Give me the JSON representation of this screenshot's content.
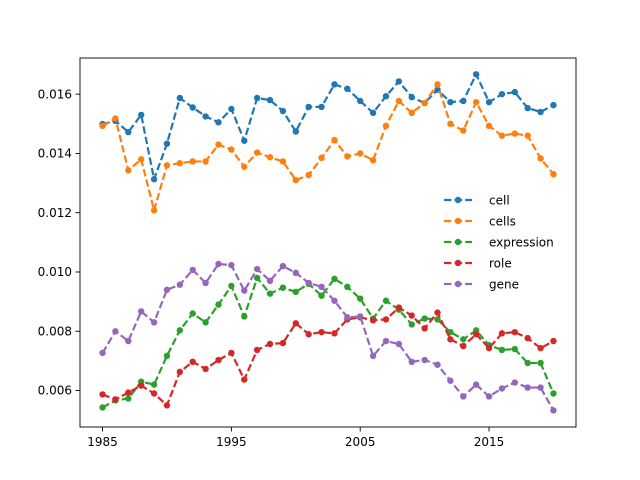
{
  "chart_data": {
    "type": "line",
    "title": "",
    "xlabel": "",
    "ylabel": "",
    "xlim": [
      1983.25,
      2021.75
    ],
    "ylim": [
      0.00477,
      0.01722
    ],
    "xticks": [
      1985,
      1995,
      2005,
      2015
    ],
    "xtick_labels": [
      "1985",
      "1995",
      "2005",
      "2015"
    ],
    "yticks": [
      0.006,
      0.008,
      0.01,
      0.012,
      0.014,
      0.016
    ],
    "ytick_labels": [
      "0.006",
      "0.008",
      "0.010",
      "0.012",
      "0.014",
      "0.016"
    ],
    "grid": false,
    "legend_position": "right",
    "line_style": "dashed",
    "marker": "circle",
    "x": [
      1985,
      1986,
      1987,
      1988,
      1989,
      1990,
      1991,
      1992,
      1993,
      1994,
      1995,
      1996,
      1997,
      1998,
      1999,
      2000,
      2001,
      2002,
      2003,
      2004,
      2005,
      2006,
      2007,
      2008,
      2009,
      2010,
      2011,
      2012,
      2013,
      2014,
      2015,
      2016,
      2017,
      2018,
      2019,
      2020
    ],
    "series": [
      {
        "name": "cell",
        "color": "#1f77b4",
        "values": [
          0.01499,
          0.0151,
          0.01472,
          0.0153,
          0.01313,
          0.01433,
          0.01587,
          0.01555,
          0.01525,
          0.01505,
          0.0155,
          0.01443,
          0.01587,
          0.0158,
          0.01543,
          0.01474,
          0.01557,
          0.01557,
          0.01633,
          0.01618,
          0.01577,
          0.01537,
          0.01593,
          0.01643,
          0.0159,
          0.0157,
          0.01615,
          0.01573,
          0.01577,
          0.01667,
          0.01573,
          0.016,
          0.01607,
          0.01553,
          0.0154,
          0.01563
        ]
      },
      {
        "name": "cells",
        "color": "#ff7f0e",
        "values": [
          0.01493,
          0.01518,
          0.01343,
          0.0138,
          0.01208,
          0.0136,
          0.01367,
          0.01373,
          0.01373,
          0.0143,
          0.01413,
          0.01355,
          0.01403,
          0.01387,
          0.01373,
          0.0131,
          0.01327,
          0.01385,
          0.01445,
          0.0139,
          0.014,
          0.01377,
          0.01493,
          0.01577,
          0.01537,
          0.0157,
          0.01633,
          0.015,
          0.01477,
          0.01573,
          0.01493,
          0.0146,
          0.01467,
          0.0146,
          0.01383,
          0.0133
        ]
      },
      {
        "name": "expression",
        "color": "#2ca02c",
        "values": [
          0.00543,
          0.00567,
          0.00573,
          0.0063,
          0.0062,
          0.00717,
          0.00803,
          0.0086,
          0.0083,
          0.0089,
          0.00953,
          0.0085,
          0.0098,
          0.00927,
          0.00947,
          0.00933,
          0.0096,
          0.0092,
          0.00977,
          0.0095,
          0.0091,
          0.00843,
          0.00903,
          0.00873,
          0.00823,
          0.00843,
          0.0084,
          0.00797,
          0.00773,
          0.00803,
          0.00753,
          0.00737,
          0.0074,
          0.00693,
          0.00693,
          0.0059
        ]
      },
      {
        "name": "role",
        "color": "#d62728",
        "values": [
          0.00587,
          0.0057,
          0.00593,
          0.00617,
          0.0059,
          0.0055,
          0.00663,
          0.00697,
          0.00673,
          0.00703,
          0.00727,
          0.00637,
          0.00737,
          0.00757,
          0.0076,
          0.00827,
          0.0079,
          0.00797,
          0.00793,
          0.0084,
          0.00847,
          0.00837,
          0.0084,
          0.0088,
          0.00853,
          0.0081,
          0.00863,
          0.00773,
          0.0075,
          0.0079,
          0.00743,
          0.00793,
          0.00797,
          0.00777,
          0.00743,
          0.00767
        ]
      },
      {
        "name": "gene",
        "color": "#9467bd",
        "values": [
          0.00727,
          0.008,
          0.00767,
          0.00867,
          0.0083,
          0.0094,
          0.00957,
          0.01007,
          0.00963,
          0.01027,
          0.01023,
          0.00937,
          0.0101,
          0.0097,
          0.0102,
          0.00997,
          0.00963,
          0.0095,
          0.00903,
          0.00847,
          0.0085,
          0.00717,
          0.00767,
          0.00757,
          0.00697,
          0.00703,
          0.00687,
          0.00633,
          0.0058,
          0.0062,
          0.0058,
          0.00607,
          0.00627,
          0.0061,
          0.0061,
          0.00533
        ]
      }
    ]
  }
}
